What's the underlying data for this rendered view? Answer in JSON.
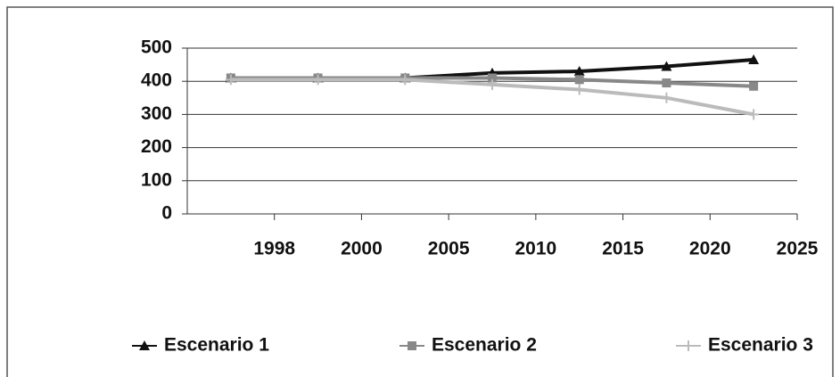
{
  "chart_data": {
    "type": "line",
    "categories": [
      "1998",
      "2000",
      "2005",
      "2010",
      "2015",
      "2020",
      "2025"
    ],
    "series": [
      {
        "name": "Escenario 1",
        "color": "#111111",
        "marker": "triangle",
        "values": [
          410,
          410,
          410,
          425,
          430,
          445,
          465
        ]
      },
      {
        "name": "Escenario 2",
        "color": "#888888",
        "marker": "square",
        "values": [
          410,
          410,
          410,
          410,
          405,
          395,
          385
        ]
      },
      {
        "name": "Escenario 3",
        "color": "#bbbbbb",
        "marker": "plus",
        "values": [
          405,
          405,
          405,
          390,
          375,
          350,
          300
        ]
      }
    ],
    "ylim": [
      0,
      500
    ],
    "yticks": [
      0,
      100,
      200,
      300,
      400,
      500
    ],
    "grid": true,
    "legend": "bottom"
  }
}
